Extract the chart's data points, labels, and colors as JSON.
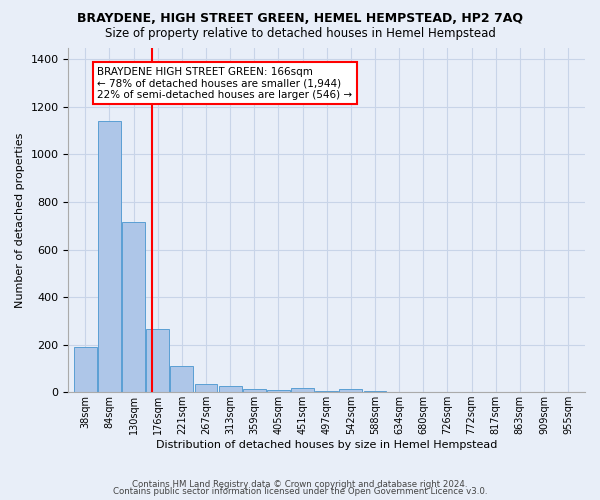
{
  "title": "BRAYDENE, HIGH STREET GREEN, HEMEL HEMPSTEAD, HP2 7AQ",
  "subtitle": "Size of property relative to detached houses in Hemel Hempstead",
  "xlabel": "Distribution of detached houses by size in Hemel Hempstead",
  "ylabel": "Number of detached properties",
  "footnote1": "Contains HM Land Registry data © Crown copyright and database right 2024.",
  "footnote2": "Contains public sector information licensed under the Open Government Licence v3.0.",
  "bin_labels": [
    "38sqm",
    "84sqm",
    "130sqm",
    "176sqm",
    "221sqm",
    "267sqm",
    "313sqm",
    "359sqm",
    "405sqm",
    "451sqm",
    "497sqm",
    "542sqm",
    "588sqm",
    "634sqm",
    "680sqm",
    "726sqm",
    "772sqm",
    "817sqm",
    "863sqm",
    "909sqm",
    "955sqm"
  ],
  "bar_values": [
    190,
    1140,
    715,
    265,
    110,
    35,
    28,
    13,
    10,
    18,
    5,
    15,
    5,
    0,
    0,
    0,
    0,
    0,
    0,
    0,
    0
  ],
  "bar_color": "#aec6e8",
  "bar_edge_color": "#5a9fd4",
  "property_line_label": "BRAYDENE HIGH STREET GREEN: 166sqm",
  "annotation_line1": "← 78% of detached houses are smaller (1,944)",
  "annotation_line2": "22% of semi-detached houses are larger (546) →",
  "annotation_box_color": "white",
  "annotation_box_edge_color": "red",
  "vline_color": "red",
  "ylim": [
    0,
    1450
  ],
  "grid_color": "#c8d4e8",
  "bg_color": "#e8eef8",
  "plot_bg_color": "#e8eef8",
  "title_fontsize": 9,
  "subtitle_fontsize": 8.5,
  "ylabel_fontsize": 8,
  "xlabel_fontsize": 8,
  "tick_fontsize": 7,
  "annotation_fontsize": 7.5,
  "footnote_fontsize": 6.2
}
